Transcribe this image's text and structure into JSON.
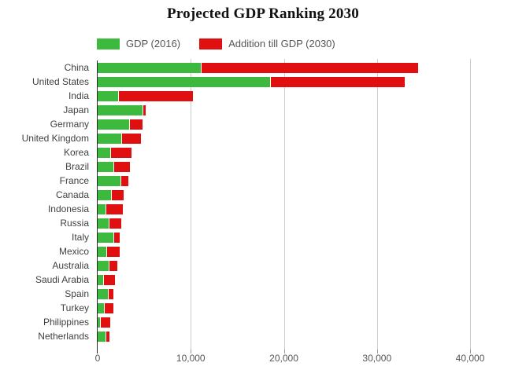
{
  "title": "Projected GDP Ranking 2030",
  "legend": {
    "items": [
      {
        "label": "GDP (2016)",
        "color": "#3dba3d"
      },
      {
        "label": "Addition till GDP (2030)",
        "color": "#e01010"
      }
    ]
  },
  "colors": {
    "green_series": "#3dba3d",
    "red_series": "#e01010",
    "gridline": "#cccccc",
    "axis_line": "#2a2a2a",
    "tick_mark": "#999999",
    "country_label": "#404040",
    "tick_label": "#555555",
    "title": "#111111",
    "background": "#ffffff"
  },
  "chart_data": {
    "type": "bar",
    "orientation": "horizontal",
    "stacked": true,
    "title": "Projected GDP Ranking 2030",
    "categories": [
      "China",
      "United States",
      "India",
      "Japan",
      "Germany",
      "United Kingdom",
      "Korea",
      "Brazil",
      "France",
      "Canada",
      "Indonesia",
      "Russia",
      "Italy",
      "Mexico",
      "Australia",
      "Saudi Arabia",
      "Spain",
      "Turkey",
      "Philippines",
      "Netherlands"
    ],
    "series": [
      {
        "name": "GDP (2016)",
        "color": "#3dba3d",
        "values": [
          11200,
          18600,
          2300,
          4900,
          3500,
          2650,
          1450,
          1800,
          2500,
          1550,
          950,
          1300,
          1800,
          1050,
          1250,
          650,
          1200,
          750,
          320,
          890
        ]
      },
      {
        "name": "Addition till GDP (2030)",
        "color": "#e01010",
        "values": [
          23200,
          14400,
          7900,
          300,
          1300,
          2000,
          2150,
          1650,
          800,
          1200,
          1750,
          1200,
          550,
          1300,
          850,
          1250,
          500,
          900,
          1030,
          360
        ]
      }
    ],
    "totals_2030": [
      34400,
      33000,
      10200,
      5200,
      4800,
      4650,
      3600,
      3450,
      3300,
      2750,
      2700,
      2500,
      2350,
      2350,
      2100,
      1900,
      1700,
      1650,
      1350,
      1250
    ],
    "xlim": [
      0,
      46000
    ],
    "x_ticks": [
      {
        "value": 0,
        "label": "0"
      },
      {
        "value": 10000,
        "label": "10,000"
      },
      {
        "value": 20000,
        "label": "20,000"
      },
      {
        "value": 30000,
        "label": "30,000"
      },
      {
        "value": 40000,
        "label": "40,000"
      }
    ],
    "grid": "vertical-only",
    "legend_position": "top-left"
  }
}
